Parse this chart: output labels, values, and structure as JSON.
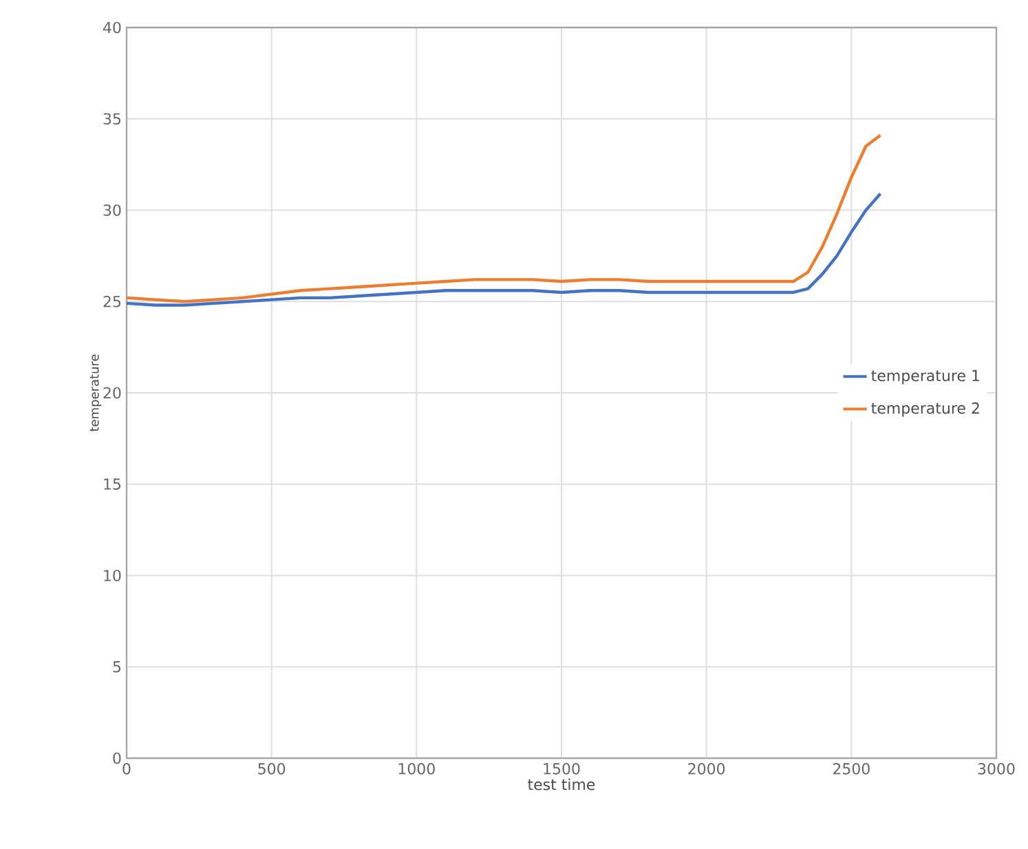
{
  "chart_data": {
    "type": "line",
    "xlabel": "test time",
    "ylabel": "temperature",
    "xlim": [
      0,
      3000
    ],
    "xticks": [
      0,
      500,
      1000,
      1500,
      2000,
      2500,
      3000
    ],
    "ylim": [
      0,
      40
    ],
    "yticks": [
      0,
      5,
      10,
      15,
      20,
      25,
      30,
      35,
      40
    ],
    "grid": true,
    "legend": "right",
    "series": [
      {
        "name": "temperature 1",
        "color": "#4472c4",
        "x": [
          0,
          100,
          200,
          300,
          400,
          500,
          600,
          700,
          800,
          900,
          1000,
          1100,
          1200,
          1300,
          1400,
          1500,
          1600,
          1700,
          1800,
          1900,
          2000,
          2100,
          2200,
          2300,
          2350,
          2400,
          2450,
          2500,
          2550,
          2600
        ],
        "values": [
          24.9,
          24.8,
          24.8,
          24.9,
          25.0,
          25.1,
          25.2,
          25.2,
          25.3,
          25.4,
          25.5,
          25.6,
          25.6,
          25.6,
          25.6,
          25.5,
          25.6,
          25.6,
          25.5,
          25.5,
          25.5,
          25.5,
          25.5,
          25.5,
          25.7,
          26.5,
          27.5,
          28.8,
          30.0,
          30.9
        ]
      },
      {
        "name": "temperature 2",
        "color": "#ed7d31",
        "x": [
          0,
          100,
          200,
          300,
          400,
          500,
          600,
          700,
          800,
          900,
          1000,
          1100,
          1200,
          1300,
          1400,
          1500,
          1600,
          1700,
          1800,
          1900,
          2000,
          2100,
          2200,
          2300,
          2350,
          2400,
          2450,
          2500,
          2550,
          2600
        ],
        "values": [
          25.2,
          25.1,
          25.0,
          25.1,
          25.2,
          25.4,
          25.6,
          25.7,
          25.8,
          25.9,
          26.0,
          26.1,
          26.2,
          26.2,
          26.2,
          26.1,
          26.2,
          26.2,
          26.1,
          26.1,
          26.1,
          26.1,
          26.1,
          26.1,
          26.6,
          28.0,
          29.8,
          31.8,
          33.5,
          34.1
        ]
      }
    ]
  }
}
